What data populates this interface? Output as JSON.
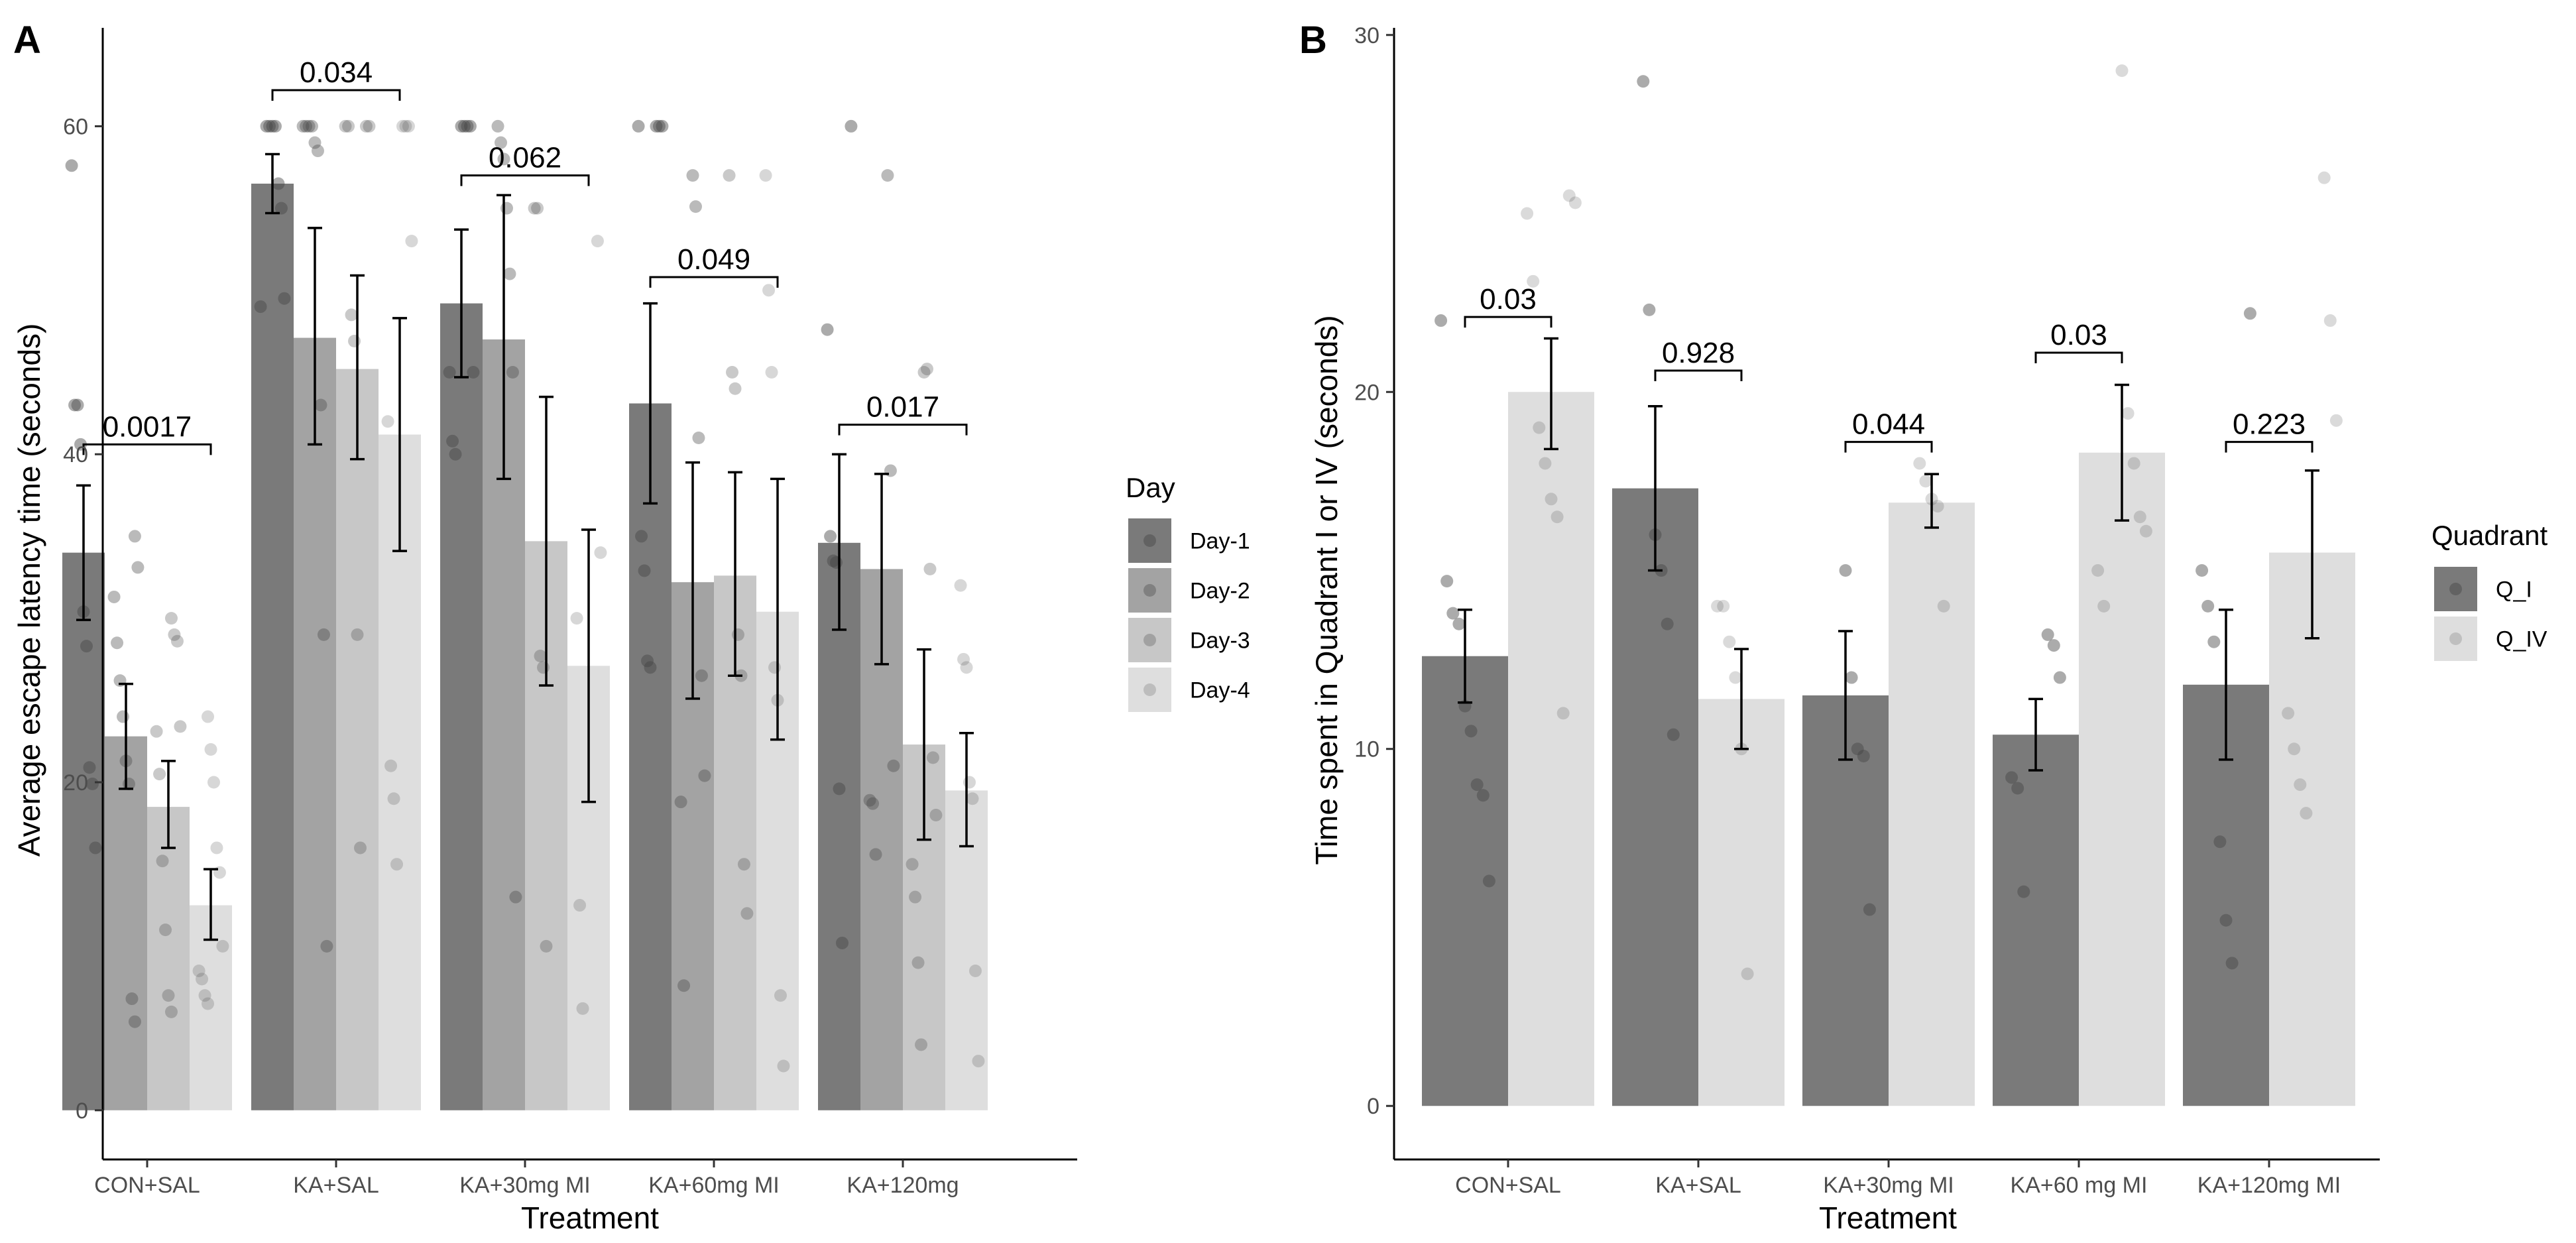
{
  "chart_data": [
    {
      "panel_label": "A",
      "type": "bar",
      "xlabel": "Treatment",
      "ylabel": "Average escape latency time (seconds)",
      "ylim": [
        -3,
        66
      ],
      "yticks": [
        0,
        20,
        40,
        60
      ],
      "categories": [
        "CON+SAL",
        "KA+SAL",
        "KA+30mg MI",
        "KA+60mg MI",
        "KA+120mg"
      ],
      "legend": {
        "title": "Day",
        "position": "right"
      },
      "series": [
        {
          "name": "Day-1",
          "color": "#7a7a7a",
          "values": [
            34.0,
            56.5,
            49.2,
            43.1,
            34.6
          ],
          "err": [
            [
              29.9,
              38.1
            ],
            [
              54.7,
              58.3
            ],
            [
              44.7,
              53.7
            ],
            [
              37.0,
              49.2
            ],
            [
              29.3,
              40.0
            ]
          ],
          "points": [
            [
              57.6,
              43.0,
              43.0,
              40.6,
              30.4,
              28.3,
              20.9,
              19.9,
              16.0
            ],
            [
              60,
              60,
              60,
              60,
              56.5,
              55.0,
              49.5,
              49.0
            ],
            [
              60,
              60,
              60,
              60,
              45.0,
              45.0,
              40.8,
              40.0
            ],
            [
              60,
              60,
              60,
              60,
              35.0,
              32.9,
              27.4,
              27.0
            ],
            [
              60,
              47.6,
              35.0,
              33.5,
              33.4,
              19.6,
              10.2
            ]
          ]
        },
        {
          "name": "Day-2",
          "color": "#a3a3a3",
          "values": [
            22.8,
            47.1,
            47.0,
            32.2,
            33.0
          ],
          "err": [
            [
              19.6,
              26.0
            ],
            [
              40.6,
              53.8
            ],
            [
              38.5,
              55.8
            ],
            [
              25.1,
              39.5
            ],
            [
              27.2,
              38.8
            ]
          ],
          "points": [
            [
              35.0,
              33.1,
              31.3,
              28.5,
              26.2,
              24.0,
              21.3,
              19.9,
              6.8,
              5.4
            ],
            [
              60,
              60,
              60,
              60,
              59.0,
              58.5,
              43.0,
              29.0,
              10.0
            ],
            [
              60,
              59.0,
              58.0,
              55.0,
              51.0,
              45.0,
              13.0
            ],
            [
              57.0,
              55.1,
              41.0,
              26.5,
              20.4,
              18.8,
              7.6
            ],
            [
              57.0,
              39.0,
              21.0,
              18.9,
              18.7,
              15.6
            ]
          ]
        },
        {
          "name": "Day-3",
          "color": "#c7c7c7",
          "values": [
            18.5,
            45.2,
            34.7,
            32.6,
            22.3
          ],
          "err": [
            [
              16.0,
              21.3
            ],
            [
              39.7,
              50.9
            ],
            [
              25.9,
              43.5
            ],
            [
              26.5,
              38.9
            ],
            [
              16.5,
              28.1
            ]
          ],
          "points": [
            [
              30.0,
              29.0,
              28.6,
              23.4,
              23.1,
              20.5,
              15.2,
              11.0,
              7.0,
              6.0
            ],
            [
              60,
              60,
              60,
              60,
              48.5,
              46.9,
              29.0,
              16.0
            ],
            [
              55.0,
              55.0,
              27.7,
              27.0,
              10.0
            ],
            [
              57.0,
              45.0,
              44.0,
              29.0,
              26.5,
              15.0,
              12.0
            ],
            [
              45.0,
              45.2,
              33.0,
              21.5,
              18.0,
              15.0,
              13.0,
              9.0,
              4.0
            ]
          ]
        },
        {
          "name": "Day-4",
          "color": "#dedede",
          "values": [
            12.5,
            41.2,
            27.1,
            30.4,
            19.5
          ],
          "err": [
            [
              10.4,
              14.7
            ],
            [
              34.1,
              48.3
            ],
            [
              18.8,
              35.4
            ],
            [
              22.6,
              38.5
            ],
            [
              16.1,
              23.0
            ]
          ],
          "points": [
            [
              24.0,
              22.0,
              20.0,
              16.0,
              14.5,
              10.0,
              8.5,
              8.0,
              7.0,
              6.5
            ],
            [
              60,
              60,
              60,
              53.0,
              42.0,
              21.0,
              19.0,
              15.0
            ],
            [
              53.0,
              34.0,
              30.0,
              12.5,
              6.2
            ],
            [
              57.0,
              50.0,
              45.0,
              27.0,
              25.0,
              7.0,
              2.7
            ],
            [
              32.0,
              27.5,
              27.0,
              20.0,
              19.0,
              8.5,
              3.0
            ]
          ]
        }
      ],
      "annotations": [
        {
          "text": "0.0017",
          "group": 0,
          "from_series": 0,
          "to_series": 3,
          "y": 40.6
        },
        {
          "text": "0.034",
          "group": 1,
          "from_series": 0,
          "to_series": 3,
          "y": 62.2
        },
        {
          "text": "0.062",
          "group": 2,
          "from_series": 0,
          "to_series": 3,
          "y": 57.0
        },
        {
          "text": "0.049",
          "group": 3,
          "from_series": 0,
          "to_series": 3,
          "y": 50.8
        },
        {
          "text": "0.017",
          "group": 4,
          "from_series": 0,
          "to_series": 3,
          "y": 41.8
        }
      ]
    },
    {
      "panel_label": "B",
      "type": "bar",
      "xlabel": "Treatment",
      "ylabel": "Time spent in Quadrant I or IV (seconds)",
      "ylim": [
        -1.5,
        30.2
      ],
      "yticks": [
        0,
        10,
        20,
        30
      ],
      "categories": [
        "CON+SAL",
        "KA+SAL",
        "KA+30mg MI",
        "KA+60 mg MI",
        "KA+120mg MI"
      ],
      "legend": {
        "title": "Quadrant",
        "position": "right"
      },
      "series": [
        {
          "name": "Q_I",
          "color": "#7a7a7a",
          "values": [
            12.6,
            17.3,
            11.5,
            10.4,
            11.8
          ],
          "err": [
            [
              11.3,
              13.9
            ],
            [
              15.0,
              19.6
            ],
            [
              9.7,
              13.3
            ],
            [
              9.4,
              11.4
            ],
            [
              9.7,
              13.9
            ]
          ],
          "points": [
            [
              22.0,
              14.7,
              13.8,
              13.5,
              11.2,
              10.5,
              9.0,
              8.7,
              6.3
            ],
            [
              28.7,
              22.3,
              16.0,
              15.0,
              13.5,
              10.4
            ],
            [
              15.0,
              12.0,
              10.0,
              9.8,
              5.5
            ],
            [
              13.2,
              12.9,
              12.0,
              9.2,
              8.9,
              6.0
            ],
            [
              22.2,
              15.0,
              14.0,
              13.0,
              7.4,
              5.2,
              4.0
            ]
          ]
        },
        {
          "name": "Q_IV",
          "color": "#dedede",
          "values": [
            20.0,
            11.4,
            16.9,
            18.3,
            15.5
          ],
          "err": [
            [
              18.4,
              21.5
            ],
            [
              10.0,
              12.8
            ],
            [
              16.2,
              17.7
            ],
            [
              16.4,
              20.2
            ],
            [
              13.1,
              17.8
            ]
          ],
          "points": [
            [
              25.5,
              25.3,
              25.0,
              23.1,
              19.0,
              18.0,
              17.0,
              16.5,
              11.0
            ],
            [
              14.0,
              14.0,
              13.0,
              12.0,
              10.0,
              3.7
            ],
            [
              18.0,
              17.5,
              17.0,
              16.8,
              14.0
            ],
            [
              29.0,
              19.4,
              18.0,
              16.5,
              16.1,
              15.0,
              14.0
            ],
            [
              26.0,
              22.0,
              19.2,
              11.0,
              10.0,
              9.0,
              8.2
            ]
          ]
        }
      ],
      "annotations": [
        {
          "text": "0.03",
          "group": 0,
          "from_series": 0,
          "to_series": 1,
          "y": 22.1
        },
        {
          "text": "0.928",
          "group": 1,
          "from_series": 0,
          "to_series": 1,
          "y": 20.6
        },
        {
          "text": "0.044",
          "group": 2,
          "from_series": 0,
          "to_series": 1,
          "y": 18.6
        },
        {
          "text": "0.03",
          "group": 3,
          "from_series": 0,
          "to_series": 1,
          "y": 21.1
        },
        {
          "text": "0.223",
          "group": 4,
          "from_series": 0,
          "to_series": 1,
          "y": 18.6
        }
      ]
    }
  ]
}
